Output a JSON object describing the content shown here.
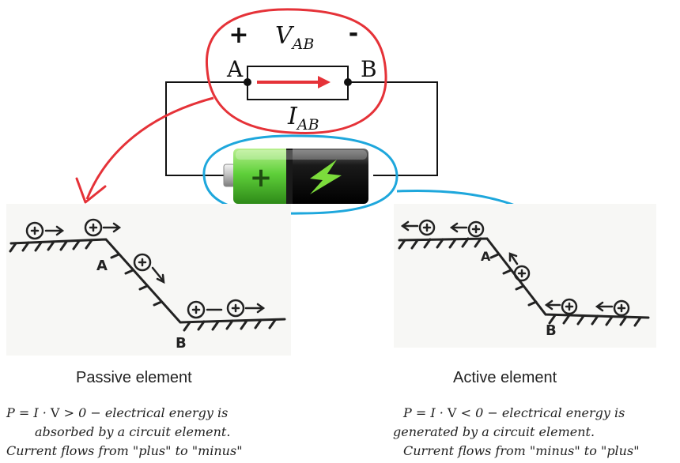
{
  "circuit": {
    "plus_sign": "+",
    "minus_sign": "-",
    "voltage_main": "V",
    "voltage_sub": "AB",
    "current_main": "I",
    "current_sub": "AB",
    "node_a": "A",
    "node_b": "B"
  },
  "battery": {
    "plus_sign": "+"
  },
  "passive": {
    "slope_point_a": "A",
    "slope_point_b": "B",
    "title": "Passive element",
    "formula_lhs": "P = I · ",
    "formula_v": "V",
    "formula_rhs": " > 0  − electrical energy is",
    "line2": "absorbed by a circuit element.",
    "line3_pre": "Current flows from ",
    "line3_from": "\"plus\"",
    "line3_mid": " to ",
    "line3_to": "\"minus\""
  },
  "active": {
    "slope_point_a": "A",
    "slope_point_b": "B",
    "title": "Active element",
    "formula_lhs": "P = I · ",
    "formula_v": "V",
    "formula_rhs": " < 0  − electrical energy is",
    "line2": "generated by a circuit element.",
    "line3_pre": "Current flows from ",
    "line3_from": "\"minus\"",
    "line3_mid": " to ",
    "line3_to": "\"plus\""
  },
  "colors": {
    "red": "#e53238",
    "blue": "#1ea7dc",
    "battery_green": "#5fd03a",
    "bolt": "#7cdc3c"
  }
}
